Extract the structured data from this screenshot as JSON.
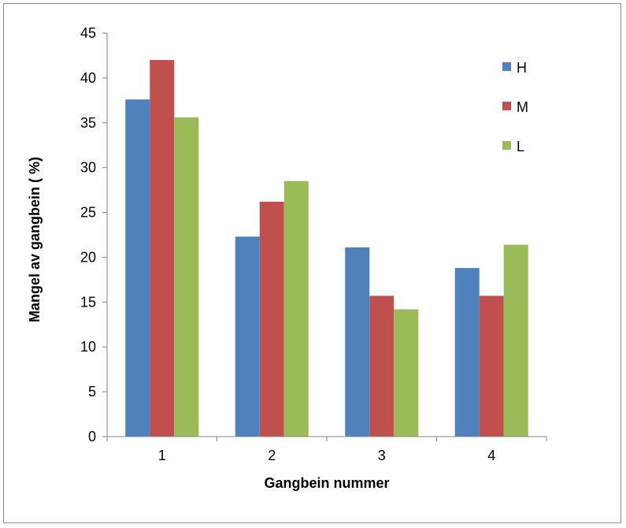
{
  "chart_data": {
    "type": "bar",
    "title": "",
    "xlabel": "Gangbein nummer",
    "ylabel": "Mangel av gangbein ( %)",
    "categories": [
      "1",
      "2",
      "3",
      "4"
    ],
    "series": [
      {
        "name": "H",
        "color": "#4f81bd",
        "values": [
          37.6,
          22.3,
          21.1,
          18.8
        ]
      },
      {
        "name": "M",
        "color": "#c0504d",
        "values": [
          42.0,
          26.2,
          15.7,
          15.7
        ]
      },
      {
        "name": "L",
        "color": "#9bbb59",
        "values": [
          35.6,
          28.5,
          14.2,
          21.4
        ]
      }
    ],
    "ylim": [
      0,
      45
    ],
    "yticks": [
      "0",
      "5",
      "10",
      "15",
      "20",
      "25",
      "30",
      "35",
      "40",
      "45"
    ],
    "grid": false,
    "legend_position": "top-right"
  }
}
